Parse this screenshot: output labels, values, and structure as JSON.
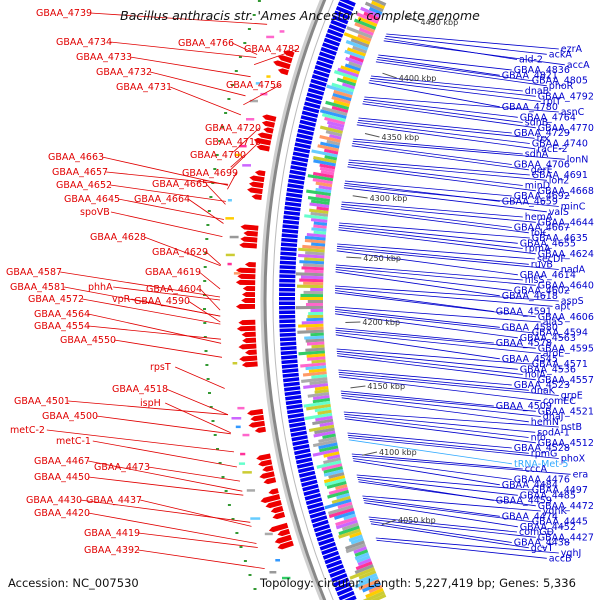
{
  "header": {
    "title": "Bacillus anthracis str. 'Ames Ancestor', complete genome"
  },
  "footer": {
    "accession": "Accession: NC_007530",
    "topology": "Topology: circular; Length: 5,227,419 bp; Genes: 5,336"
  },
  "colors": {
    "reverse_strand_label": "#e00000",
    "forward_strand_label": "#0000cc",
    "rna_label": "#33aaff",
    "backbone": "#888888",
    "reverse_feature": "#ee0000",
    "forward_feature": "#0000ee"
  },
  "scale_ticks": [
    "4450 kbp",
    "4400 kbp",
    "4350 kbp",
    "4300 kbp",
    "4250 kbp",
    "4200 kbp",
    "4150 kbp",
    "4100 kbp",
    "4050 kbp"
  ],
  "left_labels": [
    "GBAA_4739",
    "GBAA_4734",
    "GBAA_4733",
    "GBAA_4732",
    "GBAA_4731",
    "GBAA_4766",
    "GBAA_4782",
    "GBAA_4756",
    "GBAA_4720",
    "GBAA_4710",
    "GBAA_4700",
    "GBAA_4699",
    "GBAA_4665",
    "GBAA_4664",
    "GBAA_4663",
    "GBAA_4657",
    "GBAA_4652",
    "GBAA_4645",
    "spoVB",
    "GBAA_4628",
    "GBAA_4629",
    "GBAA_4619",
    "GBAA_4604",
    "GBAA_4587",
    "GBAA_4581",
    "phhA",
    "vpR",
    "GBAA_4590",
    "GBAA_4572",
    "GBAA_4564",
    "GBAA_4554",
    "GBAA_4550",
    "rpsT",
    "GBAA_4518",
    "ispH",
    "GBAA_4501",
    "GBAA_4500",
    "metC-2",
    "metC-1",
    "GBAA_4467",
    "GBAA_4473",
    "GBAA_4450",
    "GBAA_4430",
    "GBAA_4437",
    "GBAA_4420",
    "GBAA_4419",
    "GBAA_4392"
  ],
  "right_labels": [
    "ezrA",
    "ackA",
    "ald-2",
    "accA",
    "GBAA_4836",
    "GBAA_4821",
    "GBAA_4805",
    "phoR",
    "dnaB",
    "GBAA_4792",
    "rplT",
    "GBAA_4780",
    "asnC",
    "GBAA_4764",
    "sdhB",
    "GBAA_4770",
    "GBAA_4729",
    "trx",
    "GBAA_4740",
    "racE-2",
    "sdhA",
    "lonN",
    "GBAA_4706",
    "gerE",
    "GBAA_4691",
    "lon2",
    "minD",
    "GBAA_4668",
    "GBAA_4692",
    "GBAA_4659",
    "minC",
    "valS",
    "hemA",
    "GBAA_4644",
    "GBAA_4667",
    "folC",
    "GBAA_4635",
    "GBAA_4655",
    "rpmA",
    "GBAA_4624",
    "secDF",
    "ruvB",
    "nadA",
    "GBAA_4614",
    "hisS",
    "GBAA_4640",
    "GBAA_4602",
    "GBAA_4618",
    "aspS",
    "apt",
    "GBAA_4591",
    "GBAA_4606",
    "alaS",
    "GBAA_4580",
    "GBAA_4594",
    "GBAA_4563",
    "GBAA_4578",
    "GBAA_4595",
    "aroE",
    "GBAA_4545",
    "GBAA_4571",
    "GBAA_4536",
    "holA",
    "GBAA_4557",
    "GBAA_4523",
    "dnaK",
    "grpE",
    "comEC",
    "GBAA_4509",
    "GBAA_4521",
    "dnaJ",
    "hemN",
    "pstB",
    "sodA-1",
    "nfo",
    "GBAA_4512",
    "GBAA_4528",
    "rpmG",
    "phoX",
    "tRNA-Met-5",
    "cccA",
    "era",
    "GBAA_4476",
    "GBAA_4484",
    "GBAA_4497",
    "GBAA_4485",
    "GBAA_4459",
    "GBAA_4472",
    "yqhK",
    "GBAA_4474",
    "GBAA_4445",
    "GBAA_4452",
    "comGD",
    "GBAA_4427",
    "GBAA_4438",
    "gcvT",
    "yqhJ",
    "accB"
  ]
}
